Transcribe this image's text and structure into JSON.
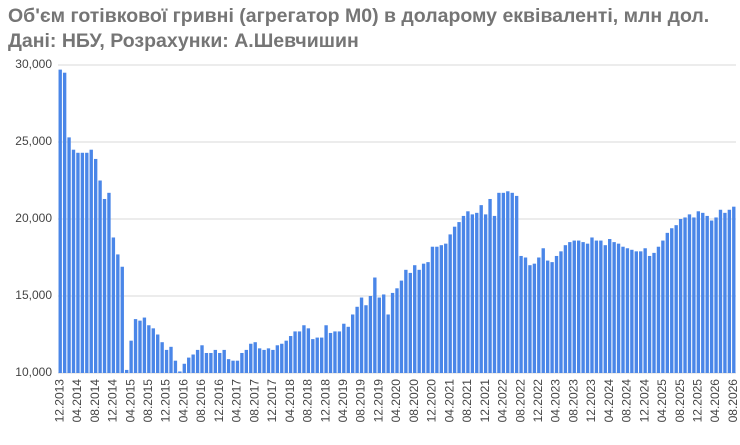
{
  "chart_data": {
    "type": "bar",
    "title": "Об'єм готівкової гривні (агрегатор М0) в доларому еквіваленті, млн дол. Дані: НБУ, Розрахунки: А.Шевчишин",
    "categories": [
      "12.2013",
      null,
      null,
      null,
      "04.2014",
      null,
      null,
      null,
      "08.2014",
      null,
      null,
      null,
      "12.2014",
      null,
      null,
      null,
      "04.2015",
      null,
      null,
      null,
      "08.2015",
      null,
      null,
      null,
      "12.2015",
      null,
      null,
      null,
      "04.2016",
      null,
      null,
      null,
      "08.2016",
      null,
      null,
      null,
      "12.2016",
      null,
      null,
      null,
      "04.2017",
      null,
      null,
      null,
      "08.2017",
      null,
      null,
      null,
      "12.2017",
      null,
      null,
      null,
      "04.2018",
      null,
      null,
      null,
      "08.2018",
      null,
      null,
      null,
      "12.2018",
      null,
      null,
      null,
      "04.2019",
      null,
      null,
      null,
      "08.2019",
      null,
      null,
      null,
      "12.2019",
      null,
      null,
      null,
      "04.2020",
      null,
      null,
      null,
      "08.2020",
      null,
      null,
      null,
      "12.2020",
      null,
      null,
      null,
      "04.2021",
      null,
      null,
      null,
      "08.2021",
      null,
      null,
      null,
      "12.2021",
      null,
      null,
      null,
      "04.2022",
      null,
      null,
      null,
      "08.2022",
      null,
      null,
      null,
      "12.2022",
      null,
      null,
      null,
      "04.2023",
      null,
      null,
      null,
      "08.2023",
      null,
      null,
      null,
      "12.2023",
      null,
      null,
      null,
      "04.2024",
      null,
      null,
      null,
      "08.2024",
      null,
      null,
      null,
      "12.2024",
      null,
      null,
      null,
      "04.2025",
      null,
      null,
      null,
      "08.2025",
      null,
      null,
      null,
      "12.2025",
      null,
      null,
      null,
      "04.2026",
      null,
      null,
      null,
      "08.2026"
    ],
    "values": [
      29700,
      29500,
      25300,
      24500,
      24300,
      24300,
      24300,
      24500,
      23900,
      22500,
      21300,
      21700,
      18800,
      17700,
      16900,
      10200,
      12100,
      13500,
      13400,
      13600,
      13100,
      12900,
      12500,
      12000,
      11500,
      11700,
      10800,
      10100,
      10600,
      11000,
      11200,
      11500,
      11800,
      11300,
      11300,
      11500,
      11300,
      11500,
      10900,
      10800,
      10800,
      11300,
      11500,
      11900,
      12000,
      11600,
      11500,
      11600,
      11500,
      11800,
      11900,
      12100,
      12400,
      12700,
      12700,
      13100,
      12900,
      12200,
      12300,
      12300,
      13100,
      12600,
      12700,
      12700,
      13200,
      13000,
      13800,
      14300,
      14900,
      14400,
      15000,
      16200,
      14900,
      15100,
      13800,
      15200,
      15500,
      16000,
      16700,
      16500,
      17000,
      16700,
      17100,
      17200,
      18200,
      18200,
      18300,
      18400,
      19000,
      19500,
      19800,
      20200,
      20500,
      20300,
      20400,
      20900,
      20300,
      21300,
      20200,
      21700,
      21700,
      21800,
      21700,
      21500,
      17600,
      17500,
      17000,
      17100,
      17500,
      18100,
      17300,
      17200,
      17600,
      17900,
      18300,
      18500,
      18600,
      18600,
      18500,
      18400,
      18800,
      18600,
      18600,
      18300,
      18700,
      18500,
      18400,
      18200,
      18100,
      18000,
      17900,
      17900,
      18100,
      17600,
      17800,
      18200,
      18600,
      19100,
      19400,
      19600,
      20000,
      20100,
      20300,
      20100,
      20500,
      20400,
      20200,
      19900,
      20100,
      20600,
      20400,
      20600,
      20800
    ],
    "color": "#4a86e8",
    "ylim": [
      10000,
      30000
    ],
    "yticks": [
      {
        "value": 10000,
        "label": "10,000"
      },
      {
        "value": 15000,
        "label": "15,000"
      },
      {
        "value": 20000,
        "label": "20,000"
      },
      {
        "value": 25000,
        "label": "25,000"
      },
      {
        "value": 30000,
        "label": "30,000"
      }
    ],
    "grid": true
  }
}
